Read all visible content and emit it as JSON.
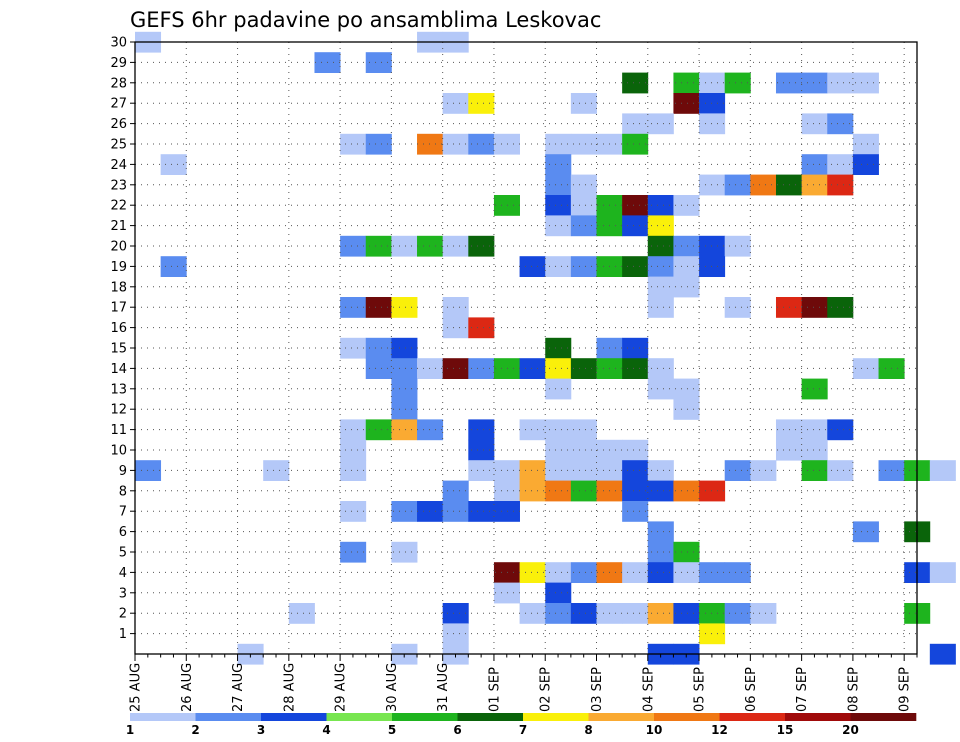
{
  "chart_data": {
    "type": "heatmap",
    "title": "GEFS 6hr padavine po ansamblima Leskovac",
    "xlabel": "",
    "ylabel": "",
    "x_ticks": [
      "25 AUG",
      "26 AUG",
      "27 AUG",
      "28 AUG",
      "29 AUG",
      "30 AUG",
      "31 AUG",
      "01 SEP",
      "02 SEP",
      "03 SEP",
      "04 SEP",
      "05 SEP",
      "06 SEP",
      "07 SEP",
      "08 SEP",
      "09 SEP"
    ],
    "x_unit": "6-hour steps (4 per day)",
    "xlim": [
      0,
      61
    ],
    "y_ticks": [
      1,
      2,
      3,
      4,
      5,
      6,
      7,
      8,
      9,
      10,
      11,
      12,
      13,
      14,
      15,
      16,
      17,
      18,
      19,
      20,
      21,
      22,
      23,
      24,
      25,
      26,
      27,
      28,
      29,
      30
    ],
    "ylim": [
      0,
      30
    ],
    "grid": true,
    "color_scale": {
      "labels": [
        "1",
        "2",
        "3",
        "4",
        "5",
        "6",
        "7",
        "8",
        "10",
        "12",
        "15",
        "20"
      ],
      "colors": [
        "#b4c8f8",
        "#5a8cf0",
        "#1446dc",
        "#78e650",
        "#1eb41e",
        "#0a640a",
        "#faf00a",
        "#faaa32",
        "#f07814",
        "#dc2814",
        "#a00a0a",
        "#6e0a0a"
      ],
      "legend_position": "bottom"
    },
    "cells": [
      [
        0,
        30,
        1
      ],
      [
        11,
        30,
        1
      ],
      [
        12,
        30,
        1
      ],
      [
        7,
        29,
        2
      ],
      [
        9,
        29,
        2
      ],
      [
        19,
        28,
        6
      ],
      [
        21,
        28,
        5
      ],
      [
        22,
        28,
        1
      ],
      [
        23,
        28,
        5
      ],
      [
        25,
        28,
        2
      ],
      [
        26,
        28,
        2
      ],
      [
        27,
        28,
        1
      ],
      [
        28,
        28,
        1
      ],
      [
        12,
        27,
        1
      ],
      [
        13,
        27,
        7
      ],
      [
        17,
        27,
        1
      ],
      [
        21,
        27,
        12
      ],
      [
        22,
        27,
        3
      ],
      [
        19,
        26,
        1
      ],
      [
        20,
        26,
        1
      ],
      [
        22,
        26,
        1
      ],
      [
        26,
        26,
        1
      ],
      [
        27,
        26,
        2
      ],
      [
        8,
        25,
        1
      ],
      [
        9,
        25,
        2
      ],
      [
        11,
        25,
        9
      ],
      [
        12,
        25,
        1
      ],
      [
        13,
        25,
        2
      ],
      [
        14,
        25,
        1
      ],
      [
        16,
        25,
        1
      ],
      [
        17,
        25,
        1
      ],
      [
        18,
        25,
        1
      ],
      [
        19,
        25,
        5
      ],
      [
        28,
        25,
        1
      ],
      [
        1,
        24,
        1
      ],
      [
        16,
        24,
        2
      ],
      [
        26,
        24,
        2
      ],
      [
        27,
        24,
        1
      ],
      [
        28,
        24,
        3
      ],
      [
        16,
        23,
        2
      ],
      [
        17,
        23,
        1
      ],
      [
        22,
        23,
        1
      ],
      [
        23,
        23,
        2
      ],
      [
        24,
        23,
        9
      ],
      [
        25,
        23,
        6
      ],
      [
        26,
        23,
        8
      ],
      [
        27,
        23,
        10
      ],
      [
        14,
        22,
        5
      ],
      [
        16,
        22,
        3
      ],
      [
        17,
        22,
        1
      ],
      [
        18,
        22,
        5
      ],
      [
        19,
        22,
        12
      ],
      [
        20,
        22,
        3
      ],
      [
        21,
        22,
        1
      ],
      [
        16,
        21,
        1
      ],
      [
        17,
        21,
        2
      ],
      [
        18,
        21,
        5
      ],
      [
        19,
        21,
        3
      ],
      [
        20,
        21,
        7
      ],
      [
        8,
        20,
        2
      ],
      [
        9,
        20,
        5
      ],
      [
        10,
        20,
        1
      ],
      [
        11,
        20,
        5
      ],
      [
        12,
        20,
        1
      ],
      [
        13,
        20,
        6
      ],
      [
        20,
        20,
        6
      ],
      [
        21,
        20,
        2
      ],
      [
        22,
        20,
        3
      ],
      [
        23,
        20,
        1
      ],
      [
        1,
        19,
        2
      ],
      [
        15,
        19,
        3
      ],
      [
        16,
        19,
        1
      ],
      [
        17,
        19,
        2
      ],
      [
        18,
        19,
        5
      ],
      [
        19,
        19,
        6
      ],
      [
        20,
        19,
        2
      ],
      [
        21,
        19,
        1
      ],
      [
        22,
        19,
        3
      ],
      [
        20,
        18,
        1
      ],
      [
        21,
        18,
        1
      ],
      [
        8,
        17,
        2
      ],
      [
        9,
        17,
        12
      ],
      [
        10,
        17,
        7
      ],
      [
        12,
        17,
        1
      ],
      [
        20,
        17,
        1
      ],
      [
        23,
        17,
        1
      ],
      [
        25,
        17,
        10
      ],
      [
        26,
        17,
        12
      ],
      [
        27,
        17,
        6
      ],
      [
        12,
        16,
        1
      ],
      [
        13,
        16,
        10
      ],
      [
        8,
        15,
        1
      ],
      [
        9,
        15,
        2
      ],
      [
        10,
        15,
        3
      ],
      [
        16,
        15,
        6
      ],
      [
        18,
        15,
        2
      ],
      [
        19,
        15,
        3
      ],
      [
        9,
        14,
        2
      ],
      [
        10,
        14,
        2
      ],
      [
        11,
        14,
        1
      ],
      [
        12,
        14,
        12
      ],
      [
        13,
        14,
        2
      ],
      [
        14,
        14,
        5
      ],
      [
        15,
        14,
        3
      ],
      [
        16,
        14,
        7
      ],
      [
        17,
        14,
        6
      ],
      [
        18,
        14,
        5
      ],
      [
        19,
        14,
        6
      ],
      [
        20,
        14,
        1
      ],
      [
        28,
        14,
        1
      ],
      [
        29,
        14,
        5
      ],
      [
        10,
        13,
        2
      ],
      [
        16,
        13,
        1
      ],
      [
        20,
        13,
        1
      ],
      [
        21,
        13,
        1
      ],
      [
        26,
        13,
        5
      ],
      [
        10,
        12,
        2
      ],
      [
        21,
        12,
        1
      ],
      [
        8,
        11,
        1
      ],
      [
        9,
        11,
        5
      ],
      [
        10,
        11,
        8
      ],
      [
        11,
        11,
        2
      ],
      [
        13,
        11,
        3
      ],
      [
        15,
        11,
        1
      ],
      [
        16,
        11,
        1
      ],
      [
        17,
        11,
        1
      ],
      [
        25,
        11,
        1
      ],
      [
        26,
        11,
        1
      ],
      [
        27,
        11,
        3
      ],
      [
        8,
        10,
        1
      ],
      [
        13,
        10,
        3
      ],
      [
        16,
        10,
        1
      ],
      [
        17,
        10,
        1
      ],
      [
        18,
        10,
        1
      ],
      [
        19,
        10,
        1
      ],
      [
        25,
        10,
        1
      ],
      [
        26,
        10,
        1
      ],
      [
        0,
        9,
        2
      ],
      [
        5,
        9,
        1
      ],
      [
        8,
        9,
        1
      ],
      [
        13,
        9,
        1
      ],
      [
        14,
        9,
        1
      ],
      [
        15,
        9,
        8
      ],
      [
        16,
        9,
        1
      ],
      [
        17,
        9,
        1
      ],
      [
        18,
        9,
        1
      ],
      [
        19,
        9,
        3
      ],
      [
        20,
        9,
        1
      ],
      [
        23,
        9,
        2
      ],
      [
        24,
        9,
        1
      ],
      [
        26,
        9,
        5
      ],
      [
        27,
        9,
        1
      ],
      [
        29,
        9,
        2
      ],
      [
        30,
        9,
        5
      ],
      [
        31,
        9,
        1
      ],
      [
        12,
        8,
        2
      ],
      [
        14,
        8,
        1
      ],
      [
        15,
        8,
        8
      ],
      [
        16,
        8,
        9
      ],
      [
        17,
        8,
        5
      ],
      [
        18,
        8,
        9
      ],
      [
        19,
        8,
        3
      ],
      [
        20,
        8,
        3
      ],
      [
        21,
        8,
        9
      ],
      [
        22,
        8,
        10
      ],
      [
        8,
        7,
        1
      ],
      [
        10,
        7,
        2
      ],
      [
        11,
        7,
        3
      ],
      [
        12,
        7,
        2
      ],
      [
        13,
        7,
        3
      ],
      [
        14,
        7,
        3
      ],
      [
        19,
        7,
        2
      ],
      [
        20,
        6,
        2
      ],
      [
        28,
        6,
        2
      ],
      [
        30,
        6,
        6
      ],
      [
        8,
        5,
        2
      ],
      [
        10,
        5,
        1
      ],
      [
        20,
        5,
        2
      ],
      [
        21,
        5,
        5
      ],
      [
        14,
        4,
        12
      ],
      [
        15,
        4,
        7
      ],
      [
        16,
        4,
        1
      ],
      [
        17,
        4,
        2
      ],
      [
        18,
        4,
        9
      ],
      [
        19,
        4,
        1
      ],
      [
        20,
        4,
        3
      ],
      [
        21,
        4,
        1
      ],
      [
        22,
        4,
        2
      ],
      [
        23,
        4,
        2
      ],
      [
        30,
        4,
        3
      ],
      [
        31,
        4,
        1
      ],
      [
        14,
        3,
        1
      ],
      [
        16,
        3,
        3
      ],
      [
        6,
        2,
        1
      ],
      [
        12,
        2,
        3
      ],
      [
        15,
        2,
        1
      ],
      [
        16,
        2,
        2
      ],
      [
        17,
        2,
        3
      ],
      [
        18,
        2,
        1
      ],
      [
        19,
        2,
        1
      ],
      [
        20,
        2,
        8
      ],
      [
        21,
        2,
        3
      ],
      [
        22,
        2,
        5
      ],
      [
        23,
        2,
        2
      ],
      [
        24,
        2,
        1
      ],
      [
        30,
        2,
        5
      ],
      [
        12,
        1,
        1
      ],
      [
        22,
        1,
        7
      ],
      [
        4,
        0,
        1
      ],
      [
        10,
        0,
        1
      ],
      [
        12,
        0,
        1
      ],
      [
        20,
        0,
        3
      ],
      [
        21,
        0,
        3
      ],
      [
        31,
        0,
        3
      ]
    ]
  }
}
